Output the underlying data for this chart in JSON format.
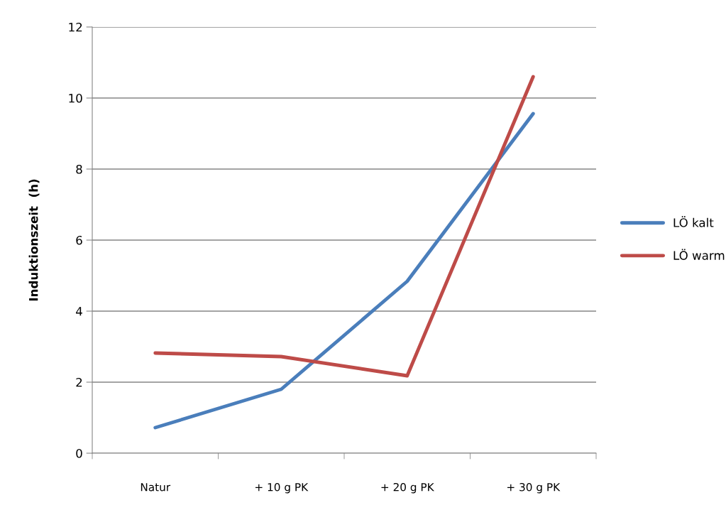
{
  "chart_data": {
    "type": "line",
    "ylabel": "Induktionszeit  (h)",
    "categories": [
      "Natur",
      "+ 10 g PK",
      "+ 20 g PK",
      "+ 30 g PK"
    ],
    "series": [
      {
        "name": "LÖ kalt",
        "color": "#4a7ebb",
        "values": [
          0.72,
          1.8,
          4.84,
          9.56
        ]
      },
      {
        "name": "LÖ warm",
        "color": "#be4b48",
        "values": [
          2.82,
          2.72,
          2.18,
          10.6
        ]
      }
    ],
    "ylim": [
      0,
      12
    ],
    "yticks": [
      0,
      2,
      4,
      6,
      8,
      10,
      12
    ],
    "grid": "y",
    "legend": "right",
    "marker": "none",
    "line_style": "solid"
  }
}
